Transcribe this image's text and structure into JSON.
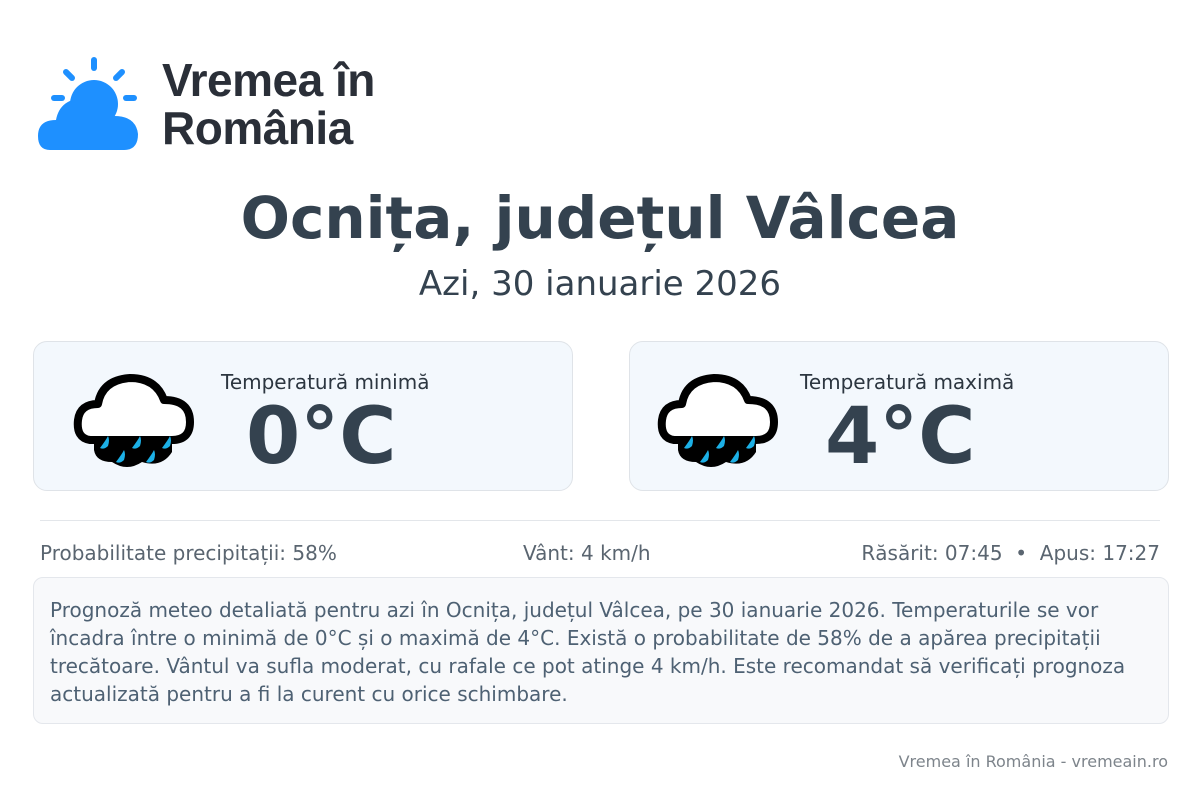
{
  "brand": {
    "line1": "Vremea în",
    "line2": "România",
    "accent": "#1e90ff"
  },
  "header": {
    "title": "Ocnița, județul Vâlcea",
    "date": "Azi, 30 ianuarie 2026"
  },
  "cards": [
    {
      "label": "Temperatură minimă",
      "value": "0°C",
      "icon": "rain-cloud-icon"
    },
    {
      "label": "Temperatură maximă",
      "value": "4°C",
      "icon": "rain-cloud-icon"
    }
  ],
  "stats": {
    "precip": "Probabilitate precipitații: 58%",
    "wind": "Vânt: 4 km/h",
    "sun": "Răsărit: 07:45  •  Apus: 17:27"
  },
  "description": "Prognoză meteo detaliată pentru azi în Ocnița, județul Vâlcea, pe 30 ianuarie 2026. Temperaturile se vor încadra între o minimă de 0°C și o maximă de 4°C. Există o probabilitate de 58% de a apărea precipitații trecătoare. Vântul va sufla moderat, cu rafale ce pot atinge 4 km/h. Este recomandat să verificați prognoza actualizată pentru a fi la curent cu orice schimbare.",
  "footer": "Vremea în România - vremeain.ro"
}
